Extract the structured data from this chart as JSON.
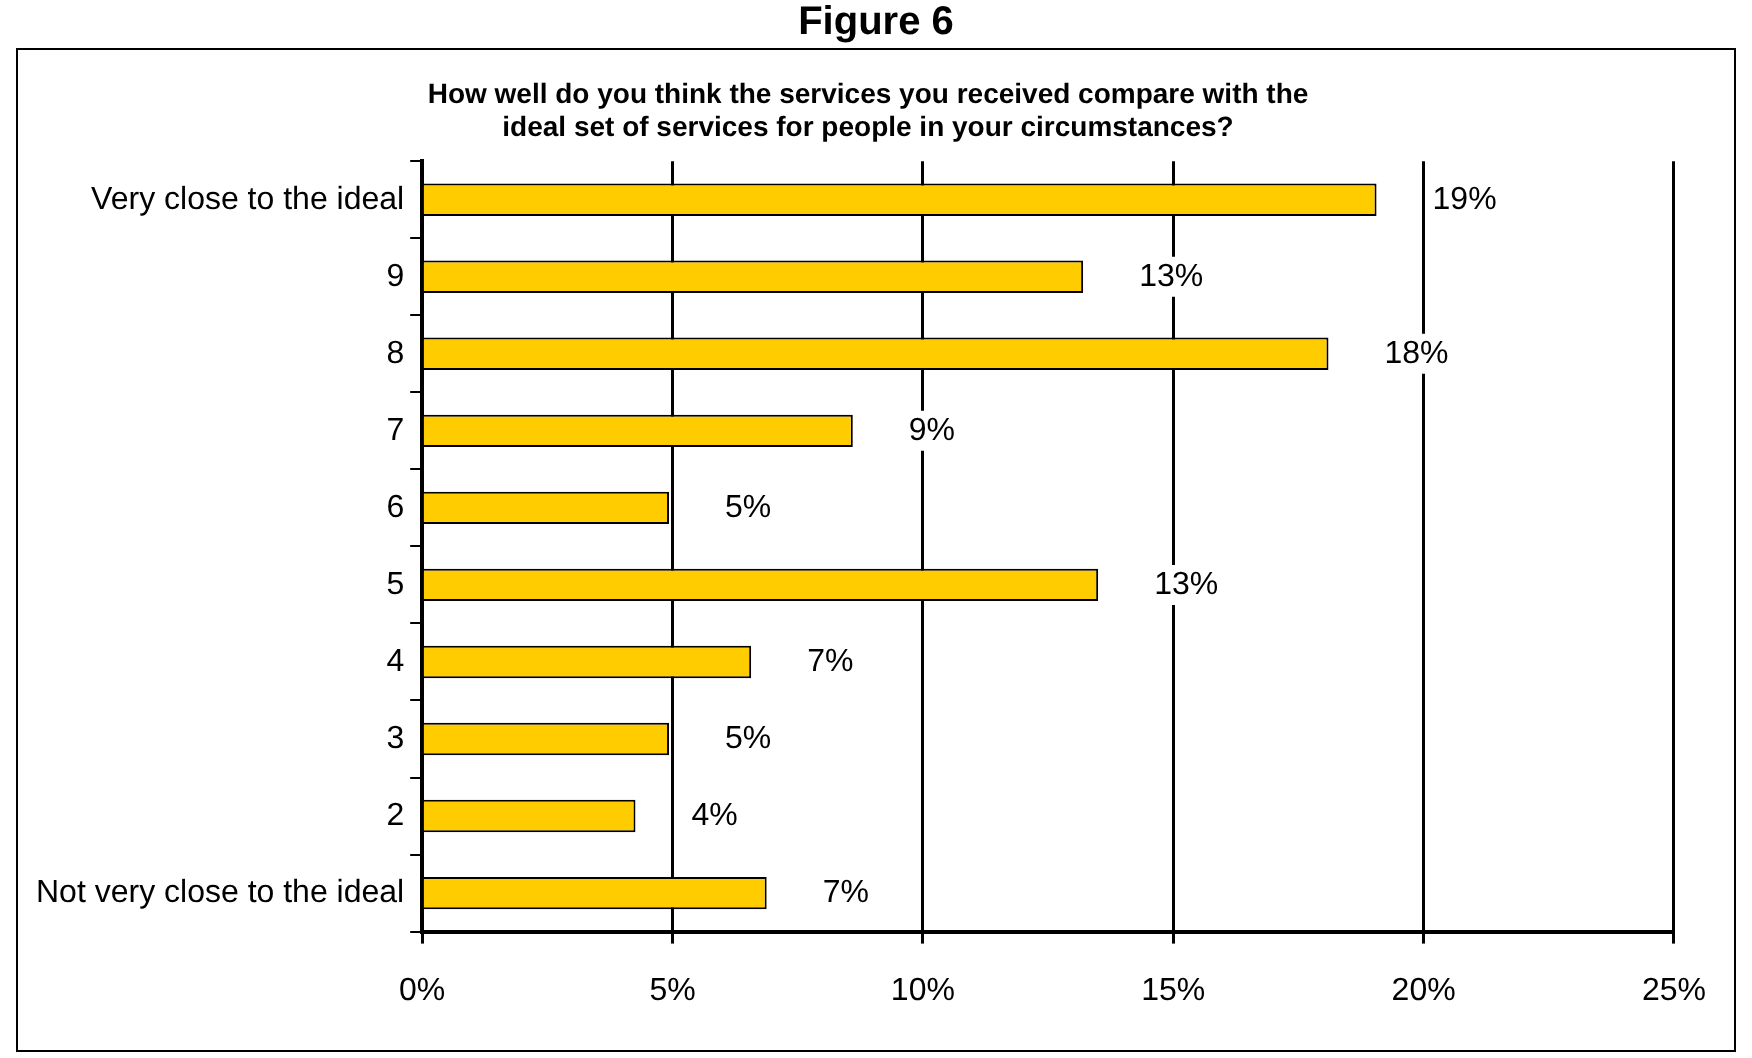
{
  "chart_data": {
    "type": "bar",
    "orientation": "horizontal",
    "title": "Figure 6",
    "subtitle": "How well do you think the services you received compare with the\nideal set of services for people in your circumstances?",
    "categories": [
      "Very close to the ideal",
      "9",
      "8",
      "7",
      "6",
      "5",
      "4",
      "3",
      "2",
      "Not very close to the ideal"
    ],
    "values": [
      19.06,
      13.2,
      18.1,
      8.6,
      4.93,
      13.5,
      6.57,
      4.93,
      4.26,
      6.88
    ],
    "value_labels": [
      "19%",
      "13%",
      "18%",
      "9%",
      "5%",
      "13%",
      "7%",
      "5%",
      "4%",
      "7%"
    ],
    "color": "#ffcc00",
    "xlim": [
      0,
      25
    ],
    "xticks": [
      {
        "value": 0,
        "label": "0%"
      },
      {
        "value": 5,
        "label": "5%"
      },
      {
        "value": 10,
        "label": "10%"
      },
      {
        "value": 15,
        "label": "15%"
      },
      {
        "value": 20,
        "label": "20%"
      },
      {
        "value": 25,
        "label": "25%"
      }
    ],
    "grid": "x",
    "legend": false
  }
}
